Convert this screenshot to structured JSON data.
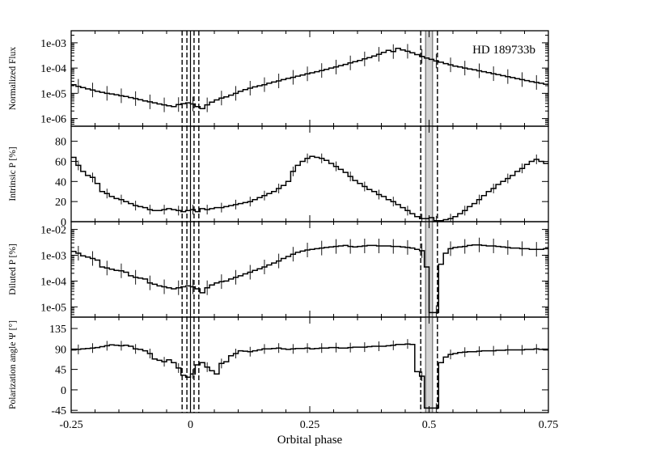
{
  "chart_data": {
    "type": "line",
    "x_label": "Orbital phase",
    "x_range": [
      -0.25,
      0.75
    ],
    "x_ticks": [
      "-0.25",
      "0",
      "0.25",
      "0.5",
      "0.75"
    ],
    "x_tick_values": [
      -0.25,
      0,
      0.25,
      0.5,
      0.75
    ],
    "transit_lines": [
      -0.0175,
      -0.0075,
      0.0075,
      0.0175
    ],
    "eclipse_lines": [
      0.4825,
      0.5175
    ],
    "eclipse_band": [
      0.4925,
      0.5075
    ],
    "panels": [
      {
        "id": "flux",
        "ylabel": "Normalized Flux",
        "yscale": "log",
        "ylim": [
          5e-07,
          0.003
        ],
        "y_ticks": [
          "1e-06",
          "1e-05",
          "1e-04",
          "1e-03"
        ],
        "y_tick_values": [
          1e-06,
          1e-05,
          0.0001,
          0.001
        ],
        "annotation": "HD 189733b",
        "x": [
          -0.25,
          -0.24,
          -0.23,
          -0.22,
          -0.21,
          -0.2,
          -0.19,
          -0.18,
          -0.17,
          -0.16,
          -0.15,
          -0.14,
          -0.13,
          -0.12,
          -0.11,
          -0.1,
          -0.09,
          -0.08,
          -0.07,
          -0.06,
          -0.05,
          -0.04,
          -0.03,
          -0.02,
          -0.01,
          0.0,
          0.01,
          0.02,
          0.03,
          0.04,
          0.05,
          0.06,
          0.07,
          0.08,
          0.09,
          0.1,
          0.11,
          0.12,
          0.13,
          0.14,
          0.15,
          0.16,
          0.17,
          0.18,
          0.19,
          0.2,
          0.21,
          0.22,
          0.23,
          0.24,
          0.25,
          0.26,
          0.27,
          0.28,
          0.29,
          0.3,
          0.31,
          0.32,
          0.33,
          0.34,
          0.35,
          0.36,
          0.37,
          0.38,
          0.39,
          0.4,
          0.41,
          0.42,
          0.43,
          0.44,
          0.45,
          0.46,
          0.47,
          0.48,
          0.49,
          0.5,
          0.51,
          0.52,
          0.53,
          0.54,
          0.55,
          0.56,
          0.57,
          0.58,
          0.59,
          0.6,
          0.61,
          0.62,
          0.63,
          0.64,
          0.65,
          0.66,
          0.67,
          0.68,
          0.69,
          0.7,
          0.71,
          0.72,
          0.73,
          0.74
        ],
        "y": [
          2.2e-05,
          1.9e-05,
          1.7e-05,
          1.5e-05,
          1.35e-05,
          1.2e-05,
          1.1e-05,
          1e-05,
          9.5e-06,
          8.8e-06,
          8e-06,
          7.5e-06,
          6.8e-06,
          6.2e-06,
          5.6e-06,
          5e-06,
          4.6e-06,
          4.2e-06,
          3.8e-06,
          3.5e-06,
          3.2e-06,
          3e-06,
          3.6e-06,
          3.9e-06,
          4.2e-06,
          3.8e-06,
          3e-06,
          2.5e-06,
          3.5e-06,
          4.5e-06,
          5.5e-06,
          6.5e-06,
          7.2e-06,
          8.5e-06,
          1e-05,
          1.2e-05,
          1.4e-05,
          1.6e-05,
          1.8e-05,
          2e-05,
          2.2e-05,
          2.5e-05,
          2.8e-05,
          3.1e-05,
          3.5e-05,
          3.9e-05,
          4.3e-05,
          4.8e-05,
          5.3e-05,
          5.9e-05,
          6.5e-05,
          7.2e-05,
          8e-05,
          8.9e-05,
          0.0001,
          0.00011,
          0.000125,
          0.00014,
          0.00016,
          0.00018,
          0.0002,
          0.00023,
          0.00026,
          0.0003,
          0.00035,
          0.00042,
          0.0005,
          0.00045,
          0.0006,
          0.00052,
          0.00046,
          0.0004,
          0.00034,
          0.00029,
          0.00025,
          0.00022,
          0.00019,
          0.00017,
          0.00015,
          0.000135,
          0.00012,
          0.00011,
          0.0001,
          9.2e-05,
          8.5e-05,
          7.8e-05,
          7.2e-05,
          6.6e-05,
          6e-05,
          5.5e-05,
          5e-05,
          4.6e-05,
          4.2e-05,
          3.8e-05,
          3.5e-05,
          3.2e-05,
          2.9e-05,
          2.7e-05,
          2.5e-05,
          2.3e-05
        ]
      },
      {
        "id": "intrinsic",
        "ylabel": "Intrinsic P [%]",
        "yscale": "linear",
        "ylim": [
          0,
          95
        ],
        "y_ticks": [
          "0",
          "20",
          "40",
          "60",
          "80"
        ],
        "y_tick_values": [
          0,
          20,
          40,
          60,
          80
        ],
        "x": [
          -0.25,
          -0.24,
          -0.23,
          -0.22,
          -0.21,
          -0.2,
          -0.19,
          -0.18,
          -0.17,
          -0.16,
          -0.15,
          -0.14,
          -0.13,
          -0.12,
          -0.11,
          -0.1,
          -0.09,
          -0.08,
          -0.07,
          -0.06,
          -0.05,
          -0.04,
          -0.03,
          -0.02,
          -0.01,
          0.0,
          0.01,
          0.02,
          0.03,
          0.04,
          0.05,
          0.06,
          0.07,
          0.08,
          0.09,
          0.1,
          0.11,
          0.12,
          0.13,
          0.14,
          0.15,
          0.16,
          0.17,
          0.18,
          0.19,
          0.2,
          0.21,
          0.22,
          0.23,
          0.24,
          0.25,
          0.26,
          0.27,
          0.28,
          0.29,
          0.3,
          0.31,
          0.32,
          0.33,
          0.34,
          0.35,
          0.36,
          0.37,
          0.38,
          0.39,
          0.4,
          0.41,
          0.42,
          0.43,
          0.44,
          0.45,
          0.46,
          0.47,
          0.48,
          0.49,
          0.5,
          0.51,
          0.52,
          0.53,
          0.54,
          0.55,
          0.56,
          0.57,
          0.58,
          0.59,
          0.6,
          0.61,
          0.62,
          0.63,
          0.64,
          0.65,
          0.66,
          0.67,
          0.68,
          0.69,
          0.7,
          0.71,
          0.72,
          0.73,
          0.74
        ],
        "y": [
          64,
          56,
          50,
          46,
          44,
          38,
          30,
          28,
          25,
          23,
          22,
          20,
          18,
          16,
          15,
          14,
          12,
          11,
          11,
          12,
          13,
          12,
          11,
          10,
          11,
          12,
          10,
          13,
          12,
          13,
          14,
          14,
          15,
          16,
          17,
          18,
          19,
          20,
          22,
          24,
          26,
          28,
          30,
          33,
          36,
          40,
          50,
          56,
          60,
          63,
          65,
          64,
          63,
          61,
          58,
          55,
          52,
          49,
          45,
          41,
          38,
          35,
          32,
          30,
          27,
          25,
          22,
          20,
          17,
          14,
          11,
          8,
          5,
          3,
          3,
          4,
          1,
          1,
          2,
          3,
          5,
          8,
          11,
          15,
          18,
          22,
          26,
          30,
          33,
          37,
          40,
          43,
          46,
          50,
          53,
          57,
          60,
          62,
          60,
          58
        ]
      },
      {
        "id": "diluted",
        "ylabel": "Diluted P [%]",
        "yscale": "log",
        "ylim": [
          4e-06,
          0.02
        ],
        "y_ticks": [
          "1e-05",
          "1e-04",
          "1e-03",
          "1e-02"
        ],
        "y_tick_values": [
          1e-05,
          0.0001,
          0.001,
          0.01
        ],
        "x": [
          -0.25,
          -0.24,
          -0.23,
          -0.22,
          -0.21,
          -0.2,
          -0.19,
          -0.18,
          -0.17,
          -0.16,
          -0.15,
          -0.14,
          -0.13,
          -0.12,
          -0.11,
          -0.1,
          -0.09,
          -0.08,
          -0.07,
          -0.06,
          -0.05,
          -0.04,
          -0.03,
          -0.02,
          -0.01,
          0.0,
          0.01,
          0.02,
          0.03,
          0.04,
          0.05,
          0.06,
          0.07,
          0.08,
          0.09,
          0.1,
          0.11,
          0.12,
          0.13,
          0.14,
          0.15,
          0.16,
          0.17,
          0.18,
          0.19,
          0.2,
          0.21,
          0.22,
          0.23,
          0.24,
          0.25,
          0.26,
          0.27,
          0.28,
          0.29,
          0.3,
          0.31,
          0.32,
          0.33,
          0.34,
          0.35,
          0.36,
          0.37,
          0.38,
          0.39,
          0.4,
          0.41,
          0.42,
          0.43,
          0.44,
          0.45,
          0.46,
          0.47,
          0.48,
          0.49,
          0.5,
          0.51,
          0.52,
          0.53,
          0.54,
          0.55,
          0.56,
          0.57,
          0.58,
          0.59,
          0.6,
          0.61,
          0.62,
          0.63,
          0.64,
          0.65,
          0.66,
          0.67,
          0.68,
          0.69,
          0.7,
          0.71,
          0.72,
          0.73,
          0.74
        ],
        "y": [
          0.0014,
          0.0012,
          0.00095,
          0.00085,
          0.00075,
          0.00065,
          0.00035,
          0.00032,
          0.00029,
          0.00026,
          0.00025,
          0.00022,
          0.00016,
          0.00014,
          0.00013,
          0.00012,
          8.5e-05,
          7.5e-05,
          6.5e-05,
          6e-05,
          5.5e-05,
          5e-05,
          5.5e-05,
          6e-05,
          6.5e-05,
          6e-05,
          5e-05,
          3.5e-05,
          5.5e-05,
          7e-05,
          8.5e-05,
          9.5e-05,
          0.0001,
          0.00012,
          0.00014,
          0.00016,
          0.00019,
          0.00022,
          0.00026,
          0.0003,
          0.00035,
          0.00042,
          0.0005,
          0.0006,
          0.00075,
          0.0009,
          0.0011,
          0.0013,
          0.00145,
          0.0016,
          0.0017,
          0.0018,
          0.0019,
          0.002,
          0.0021,
          0.0022,
          0.0023,
          0.0024,
          0.0022,
          0.0021,
          0.0022,
          0.0023,
          0.0024,
          0.0024,
          0.0023,
          0.0023,
          0.0023,
          0.0022,
          0.0022,
          0.0021,
          0.002,
          0.0019,
          0.0017,
          0.0015,
          0.00035,
          6e-06,
          6e-06,
          0.00045,
          0.0012,
          0.0018,
          0.002,
          0.0021,
          0.0022,
          0.0024,
          0.0025,
          0.0025,
          0.0024,
          0.0023,
          0.0023,
          0.0022,
          0.0021,
          0.002,
          0.0019,
          0.0019,
          0.0018,
          0.0018,
          0.0017,
          0.0017,
          0.0017,
          0.0018
        ]
      },
      {
        "id": "angle",
        "ylabel": "Polarization angle Ψ [°]",
        "yscale": "linear",
        "ylim": [
          -50,
          160
        ],
        "y_ticks": [
          "-45",
          "0",
          "45",
          "90",
          "135"
        ],
        "y_tick_values": [
          -45,
          0,
          45,
          90,
          135
        ],
        "x": [
          -0.25,
          -0.24,
          -0.23,
          -0.22,
          -0.21,
          -0.2,
          -0.19,
          -0.18,
          -0.17,
          -0.16,
          -0.15,
          -0.14,
          -0.13,
          -0.12,
          -0.11,
          -0.1,
          -0.09,
          -0.08,
          -0.07,
          -0.06,
          -0.05,
          -0.04,
          -0.03,
          -0.02,
          -0.01,
          0.0,
          0.01,
          0.02,
          0.03,
          0.04,
          0.05,
          0.06,
          0.07,
          0.08,
          0.09,
          0.1,
          0.11,
          0.12,
          0.13,
          0.14,
          0.15,
          0.16,
          0.17,
          0.18,
          0.19,
          0.2,
          0.21,
          0.22,
          0.23,
          0.24,
          0.25,
          0.26,
          0.27,
          0.28,
          0.29,
          0.3,
          0.31,
          0.32,
          0.33,
          0.34,
          0.35,
          0.36,
          0.37,
          0.38,
          0.39,
          0.4,
          0.41,
          0.42,
          0.43,
          0.44,
          0.45,
          0.46,
          0.47,
          0.48,
          0.49,
          0.5,
          0.51,
          0.52,
          0.53,
          0.54,
          0.55,
          0.56,
          0.57,
          0.58,
          0.59,
          0.6,
          0.61,
          0.62,
          0.63,
          0.64,
          0.65,
          0.66,
          0.67,
          0.68,
          0.69,
          0.7,
          0.71,
          0.72,
          0.73,
          0.74
        ],
        "y": [
          88,
          89,
          90,
          91,
          92,
          93,
          95,
          97,
          99,
          98,
          97,
          98,
          96,
          90,
          89,
          86,
          80,
          68,
          65,
          62,
          66,
          60,
          48,
          32,
          28,
          35,
          55,
          60,
          50,
          42,
          35,
          58,
          62,
          75,
          80,
          86,
          85,
          84,
          86,
          88,
          90,
          90,
          91,
          92,
          90,
          89,
          90,
          91,
          91,
          92,
          90,
          91,
          92,
          92,
          93,
          93,
          92,
          92,
          93,
          94,
          94,
          94,
          95,
          96,
          96,
          96,
          97,
          98,
          100,
          100,
          101,
          100,
          40,
          30,
          -40,
          -40,
          -40,
          60,
          72,
          78,
          80,
          82,
          83,
          84,
          84,
          85,
          86,
          86,
          86,
          87,
          87,
          88,
          88,
          88,
          88,
          89,
          89,
          90,
          89,
          88
        ]
      }
    ]
  }
}
